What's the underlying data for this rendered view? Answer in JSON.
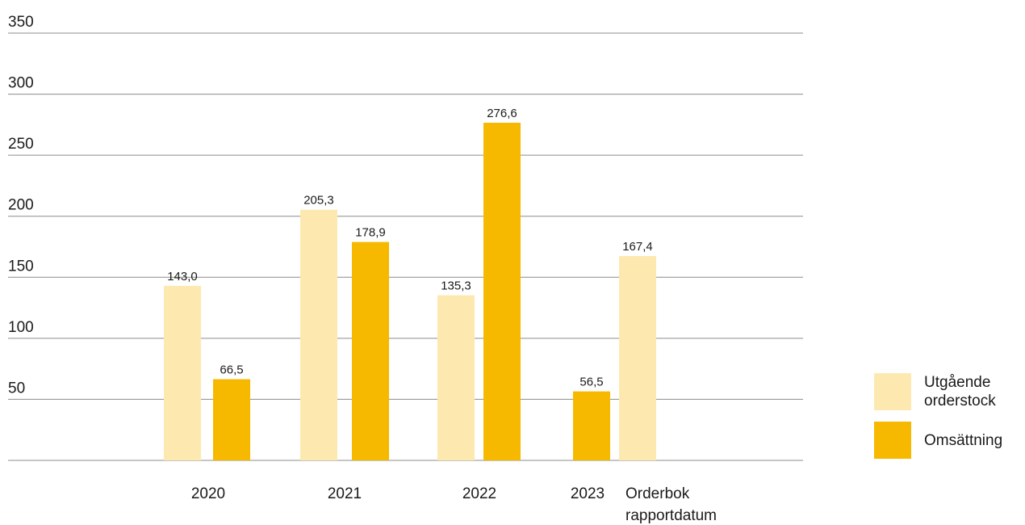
{
  "chart_data": {
    "type": "bar",
    "title": "",
    "xlabel": "",
    "ylabel": "",
    "ylim": [
      0,
      350
    ],
    "yticks": [
      50,
      100,
      150,
      200,
      250,
      300,
      350
    ],
    "grid": true,
    "legend_position": "right",
    "categories": [
      {
        "line1": "2020",
        "line2": ""
      },
      {
        "line1": "2021",
        "line2": ""
      },
      {
        "line1": "2022",
        "line2": ""
      },
      {
        "line1": "2023",
        "line2": ""
      },
      {
        "line1": "Orderbok",
        "line2": "rapportdatum"
      }
    ],
    "series": [
      {
        "name": "Utgående orderstock",
        "name_lines": [
          "Utgående",
          "orderstock"
        ],
        "color": "#fde9b0",
        "values": [
          143.0,
          205.3,
          135.3,
          null,
          167.4
        ],
        "labels": [
          "143,0",
          "205,3",
          "135,3",
          "",
          "167,4"
        ]
      },
      {
        "name": "Omsättning",
        "name_lines": [
          "Omsättning"
        ],
        "color": "#f7b800",
        "values": [
          66.5,
          178.9,
          276.6,
          56.5,
          null
        ],
        "labels": [
          "66,5",
          "178,9",
          "276,6",
          "56,5",
          ""
        ]
      }
    ]
  }
}
